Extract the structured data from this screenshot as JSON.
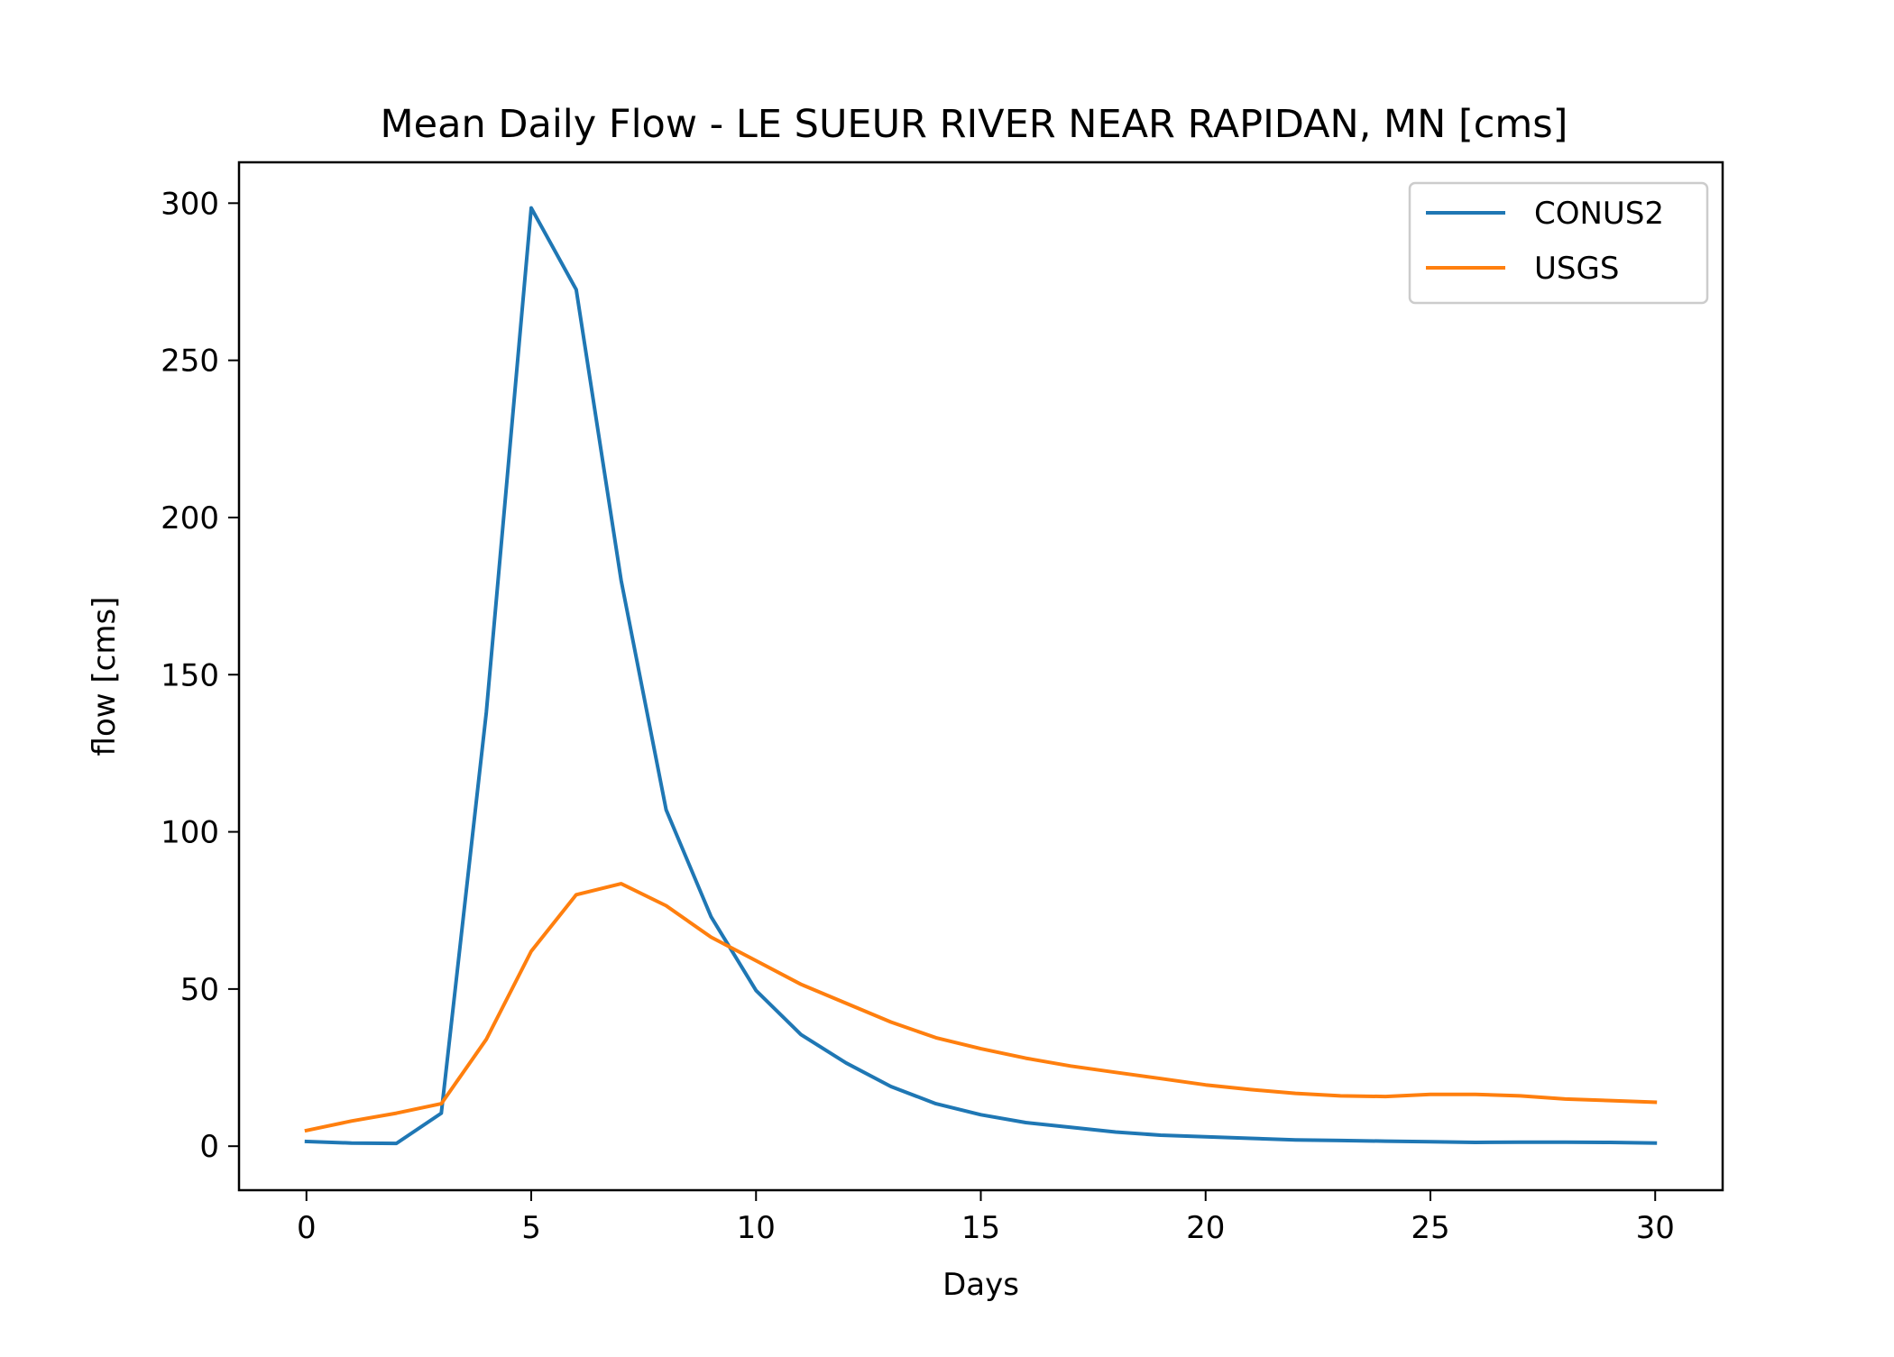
{
  "chart_data": {
    "type": "line",
    "title": "Mean Daily Flow - LE SUEUR RIVER NEAR RAPIDAN, MN [cms]",
    "xlabel": "Days",
    "ylabel": "flow [cms]",
    "xlim": [
      -1.5,
      31.5
    ],
    "ylim": [
      -14,
      313
    ],
    "xticks": [
      0,
      5,
      10,
      15,
      20,
      25,
      30
    ],
    "yticks": [
      0,
      50,
      100,
      150,
      200,
      250,
      300
    ],
    "grid": false,
    "legend_position": "top-right",
    "x": [
      0,
      1,
      2,
      3,
      4,
      5,
      6,
      7,
      8,
      9,
      10,
      11,
      12,
      13,
      14,
      15,
      16,
      17,
      18,
      19,
      20,
      21,
      22,
      23,
      24,
      25,
      26,
      27,
      28,
      29,
      30
    ],
    "series": [
      {
        "name": "CONUS2",
        "color": "#1f77b4",
        "values": [
          1.5,
          1,
          0.9,
          10.5,
          138,
          298.5,
          272.5,
          180,
          107,
          73,
          49.5,
          35.5,
          26.5,
          19,
          13.5,
          10,
          7.5,
          6,
          4.5,
          3.5,
          3,
          2.5,
          2,
          1.8,
          1.6,
          1.4,
          1.2,
          1.3,
          1.3,
          1.2,
          1
        ]
      },
      {
        "name": "USGS",
        "color": "#ff7f0e",
        "values": [
          5,
          8,
          10.5,
          13.5,
          34,
          62,
          80,
          83.5,
          76.5,
          66.5,
          59,
          51.5,
          45.5,
          39.5,
          34.5,
          31,
          28,
          25.5,
          23.5,
          21.5,
          19.5,
          18,
          16.8,
          16,
          15.8,
          16.5,
          16.5,
          16,
          15,
          14.5,
          14
        ]
      }
    ]
  }
}
